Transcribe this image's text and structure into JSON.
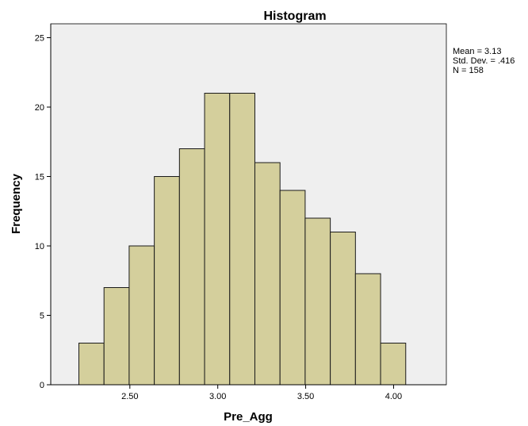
{
  "chart_data": {
    "type": "bar",
    "subtype": "histogram",
    "title": "Histogram",
    "xlabel": "Pre_Agg",
    "ylabel": "Frequency",
    "bin_width": 0.143,
    "bins": [
      {
        "start": 2.21,
        "end": 2.353,
        "value": 3
      },
      {
        "start": 2.353,
        "end": 2.496,
        "value": 7
      },
      {
        "start": 2.496,
        "end": 2.639,
        "value": 10
      },
      {
        "start": 2.639,
        "end": 2.782,
        "value": 15
      },
      {
        "start": 2.782,
        "end": 2.925,
        "value": 17
      },
      {
        "start": 2.925,
        "end": 3.068,
        "value": 21
      },
      {
        "start": 3.068,
        "end": 3.211,
        "value": 21
      },
      {
        "start": 3.211,
        "end": 3.354,
        "value": 16
      },
      {
        "start": 3.354,
        "end": 3.497,
        "value": 14
      },
      {
        "start": 3.497,
        "end": 3.64,
        "value": 12
      },
      {
        "start": 3.64,
        "end": 3.783,
        "value": 11
      },
      {
        "start": 3.783,
        "end": 3.926,
        "value": 8
      },
      {
        "start": 3.926,
        "end": 4.069,
        "value": 3
      }
    ],
    "xlim": [
      2.05,
      4.3
    ],
    "ylim": [
      0,
      26
    ],
    "x_ticks": [
      {
        "value": 2.5,
        "label": "2.50"
      },
      {
        "value": 3.0,
        "label": "3.00"
      },
      {
        "value": 3.5,
        "label": "3.50"
      },
      {
        "value": 4.0,
        "label": "4.00"
      }
    ],
    "y_ticks": [
      {
        "value": 0,
        "label": "0"
      },
      {
        "value": 5,
        "label": "5"
      },
      {
        "value": 10,
        "label": "10"
      },
      {
        "value": 15,
        "label": "15"
      },
      {
        "value": 20,
        "label": "20"
      },
      {
        "value": 25,
        "label": "25"
      }
    ],
    "stats": {
      "mean": "Mean = 3.13",
      "std_dev": "Std. Dev. = .416",
      "n": "N = 158"
    },
    "grid": false,
    "legend": "none",
    "colors": {
      "bar_fill": "#d4cf9c",
      "bar_stroke": "#1a1a1a",
      "plot_background": "#efefef",
      "axis": "#000000"
    }
  }
}
